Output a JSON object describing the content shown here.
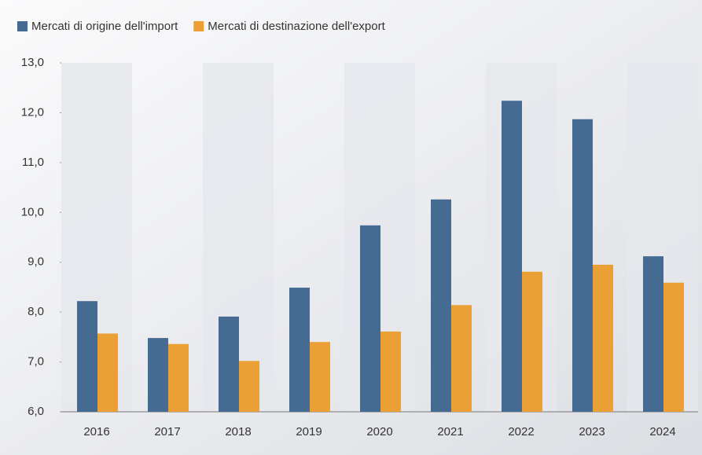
{
  "chart_data": {
    "type": "bar",
    "categories": [
      "2016",
      "2017",
      "2018",
      "2019",
      "2020",
      "2021",
      "2022",
      "2023",
      "2024"
    ],
    "series": [
      {
        "name": "Mercati di origine dell'import",
        "color": "#456b93",
        "values": [
          8.22,
          7.48,
          7.91,
          8.49,
          9.74,
          10.26,
          12.24,
          11.87,
          9.12
        ]
      },
      {
        "name": "Mercati di destinazione dell'export",
        "color": "#eba036",
        "values": [
          7.57,
          7.36,
          7.02,
          7.4,
          7.61,
          8.14,
          8.81,
          8.95,
          8.59
        ]
      }
    ],
    "ylim": [
      6,
      13
    ],
    "yticks": [
      {
        "value": 6,
        "label": "6,0"
      },
      {
        "value": 7,
        "label": "7,0"
      },
      {
        "value": 8,
        "label": "8,0"
      },
      {
        "value": 9,
        "label": "9,0"
      },
      {
        "value": 10,
        "label": "10,0"
      },
      {
        "value": 11,
        "label": "11,0"
      },
      {
        "value": 12,
        "label": "12,0"
      },
      {
        "value": 13,
        "label": "13,0"
      }
    ],
    "legend": "top-left"
  }
}
